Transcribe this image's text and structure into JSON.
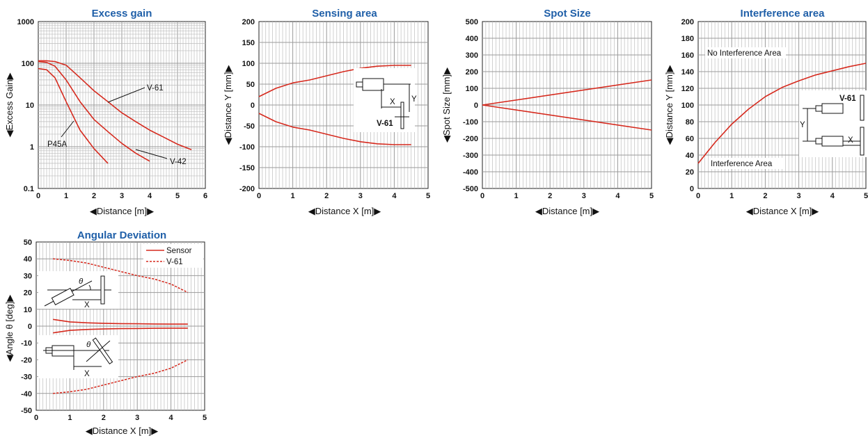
{
  "colors": {
    "title": "#1f5fa8",
    "series": "#d62a1e",
    "grid": "#bdbdbd",
    "axis": "#222222"
  },
  "chart_data": [
    {
      "id": "excess",
      "type": "line",
      "title": "Excess gain",
      "xlabel": "◀Distance [m]▶",
      "ylabel": "◀Excess Gain▶",
      "xlim": [
        0,
        6
      ],
      "ylim": [
        0.1,
        1000
      ],
      "yscale": "log",
      "xticks": [
        "0",
        "1",
        "2",
        "3",
        "4",
        "5",
        "6"
      ],
      "yticks": [
        "0.1",
        "1",
        "10",
        "100",
        "1000"
      ],
      "grid": true,
      "series": [
        {
          "name": "V-61",
          "style": "solid",
          "x": [
            0,
            0.3,
            0.6,
            1,
            1.5,
            2,
            2.5,
            3,
            3.5,
            4,
            4.5,
            5,
            5.5
          ],
          "y": [
            115,
            115,
            110,
            90,
            45,
            22,
            12,
            6.5,
            4,
            2.5,
            1.7,
            1.15,
            0.85
          ]
        },
        {
          "name": "V-42",
          "style": "solid",
          "x": [
            0,
            0.3,
            0.6,
            1,
            1.5,
            2,
            2.5,
            3,
            3.5,
            4
          ],
          "y": [
            110,
            105,
            85,
            40,
            12,
            4.5,
            2.3,
            1.2,
            0.7,
            0.45
          ]
        },
        {
          "name": "P45A",
          "style": "solid",
          "x": [
            0,
            0.3,
            0.6,
            1,
            1.5,
            2,
            2.5
          ],
          "y": [
            75,
            70,
            45,
            12,
            2.5,
            0.9,
            0.4
          ]
        }
      ],
      "annotations": [
        "V-61",
        "V-42",
        "P45A"
      ]
    },
    {
      "id": "sensing",
      "type": "line",
      "title": "Sensing area",
      "xlabel": "◀Distance X [m]▶",
      "ylabel": "◀Distance Y [mm]▶",
      "xlim": [
        0,
        5
      ],
      "ylim": [
        -200,
        200
      ],
      "xticks": [
        "0",
        "1",
        "2",
        "3",
        "4",
        "5"
      ],
      "yticks": [
        "-200",
        "-150",
        "-100",
        "-50",
        "0",
        "50",
        "100",
        "150",
        "200"
      ],
      "grid": true,
      "series": [
        {
          "name": "",
          "style": "solid",
          "x": [
            0,
            0.5,
            1,
            1.5,
            2,
            2.5,
            3,
            3.5,
            4,
            4.5
          ],
          "y": [
            20,
            40,
            53,
            60,
            70,
            80,
            88,
            93,
            95,
            95
          ]
        },
        {
          "name": "",
          "style": "solid",
          "x": [
            0,
            0.5,
            1,
            1.5,
            2,
            2.5,
            3,
            3.5,
            4,
            4.5
          ],
          "y": [
            -20,
            -40,
            -53,
            -60,
            -70,
            -80,
            -88,
            -93,
            -95,
            -95
          ]
        }
      ],
      "inset_labels": [
        "X",
        "Y",
        "V-61"
      ]
    },
    {
      "id": "spot",
      "type": "line",
      "title": "Spot Size",
      "xlabel": "◀Distance [m]▶",
      "ylabel": "◀Spot Size [mm]▶",
      "xlim": [
        0,
        5
      ],
      "ylim": [
        -500,
        500
      ],
      "xticks": [
        "0",
        "1",
        "2",
        "3",
        "4",
        "5"
      ],
      "yticks": [
        "-500",
        "-400",
        "-300",
        "-200",
        "-100",
        "0",
        "100",
        "200",
        "300",
        "400",
        "500"
      ],
      "grid": true,
      "series": [
        {
          "name": "",
          "style": "solid",
          "x": [
            0,
            5
          ],
          "y": [
            0,
            150
          ]
        },
        {
          "name": "",
          "style": "solid",
          "x": [
            0,
            5
          ],
          "y": [
            0,
            -150
          ]
        }
      ]
    },
    {
      "id": "interf",
      "type": "line",
      "title": "Interference area",
      "xlabel": "◀Distance X [m]▶",
      "ylabel": "◀Distance Y [mm]▶",
      "xlim": [
        0,
        5
      ],
      "ylim": [
        0,
        200
      ],
      "xticks": [
        "0",
        "1",
        "2",
        "3",
        "4",
        "5"
      ],
      "yticks": [
        "0",
        "20",
        "40",
        "60",
        "80",
        "100",
        "120",
        "140",
        "160",
        "180",
        "200"
      ],
      "grid": true,
      "series": [
        {
          "name": "",
          "style": "solid",
          "x": [
            0,
            0.5,
            1,
            1.5,
            2,
            2.5,
            3,
            3.5,
            4,
            4.5,
            5
          ],
          "y": [
            30,
            55,
            77,
            95,
            110,
            121,
            129,
            136,
            141,
            146,
            150
          ]
        }
      ],
      "annotations": [
        "No Interference Area",
        "Interference Area"
      ],
      "inset_labels": [
        "V-61",
        "Y",
        "X"
      ]
    },
    {
      "id": "angular",
      "type": "line",
      "title": "Angular Deviation",
      "xlabel": "◀Distance X [m]▶",
      "ylabel": "◀Angle θ [deg]▶",
      "xlim": [
        0,
        5
      ],
      "ylim": [
        -50,
        50
      ],
      "xticks": [
        "0",
        "1",
        "2",
        "3",
        "4",
        "5"
      ],
      "yticks": [
        "-50",
        "-40",
        "-30",
        "-20",
        "-10",
        "0",
        "10",
        "20",
        "30",
        "40",
        "50"
      ],
      "grid": true,
      "legend": "top-right",
      "series": [
        {
          "name": "Sensor",
          "style": "solid",
          "x": [
            0.5,
            1,
            1.5,
            2,
            2.5,
            3,
            3.5,
            4,
            4.5
          ],
          "y": [
            4,
            2.5,
            2,
            1.7,
            1.5,
            1.4,
            1.3,
            1.2,
            1.2
          ]
        },
        {
          "name": "",
          "style": "solid",
          "x": [
            0.5,
            1,
            1.5,
            2,
            2.5,
            3,
            3.5,
            4,
            4.5
          ],
          "y": [
            -4,
            -2.5,
            -2,
            -1.7,
            -1.5,
            -1.4,
            -1.3,
            -1.2,
            -1.2
          ]
        },
        {
          "name": "V-61",
          "style": "dashed",
          "x": [
            0.5,
            1,
            1.5,
            2,
            2.5,
            3,
            3.5,
            4,
            4.5
          ],
          "y": [
            40,
            39,
            37.5,
            35,
            32.5,
            30,
            28,
            25,
            20
          ]
        },
        {
          "name": "",
          "style": "dashed",
          "x": [
            0.5,
            1,
            1.5,
            2,
            2.5,
            3,
            3.5,
            4,
            4.5
          ],
          "y": [
            -40,
            -39,
            -37.5,
            -35,
            -32.5,
            -30,
            -28,
            -25,
            -20
          ]
        }
      ],
      "inset_labels": [
        "θ",
        "X",
        "θ",
        "X"
      ]
    }
  ]
}
